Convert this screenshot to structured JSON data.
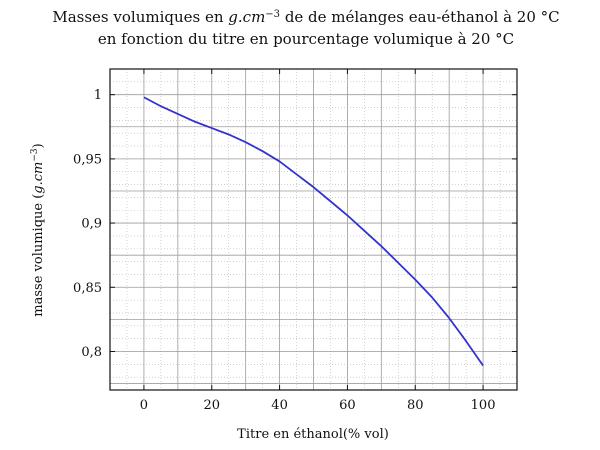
{
  "chart_data": {
    "type": "line",
    "title": {
      "line1": {
        "prefix": "Masses volumiques en ",
        "unit": "g.cm",
        "exp": "−3",
        "suffix": " de de mélanges eau-éthanol à 20 °C"
      },
      "line2": "en fonction du titre en pourcentage volumique à 20 °C"
    },
    "xlabel": "Titre en éthanol(% vol)",
    "ylabel": {
      "prefix": "masse volumique (",
      "unit": "g.cm",
      "exp": "−3",
      "suffix": ")"
    },
    "xlim": [
      -10,
      110
    ],
    "ylim": [
      0.77,
      1.02
    ],
    "xticks": [
      0,
      20,
      40,
      60,
      80,
      100
    ],
    "xtick_labels": [
      "0",
      "20",
      "40",
      "60",
      "80",
      "100"
    ],
    "yticks": [
      0.8,
      0.85,
      0.9,
      0.95,
      1.0
    ],
    "ytick_labels": [
      "0,8",
      "0,85",
      "0,9",
      "0,95",
      "1"
    ],
    "grid": true,
    "line_color": "#3333cc",
    "series": [
      {
        "x": [
          0,
          5,
          10,
          15,
          20,
          25,
          30,
          35,
          40,
          45,
          50,
          55,
          60,
          65,
          70,
          75,
          80,
          85,
          90,
          95,
          100
        ],
        "y": [
          0.998,
          0.991,
          0.985,
          0.979,
          0.974,
          0.969,
          0.963,
          0.956,
          0.948,
          0.938,
          0.928,
          0.917,
          0.906,
          0.894,
          0.882,
          0.869,
          0.856,
          0.842,
          0.826,
          0.808,
          0.789
        ]
      }
    ]
  }
}
